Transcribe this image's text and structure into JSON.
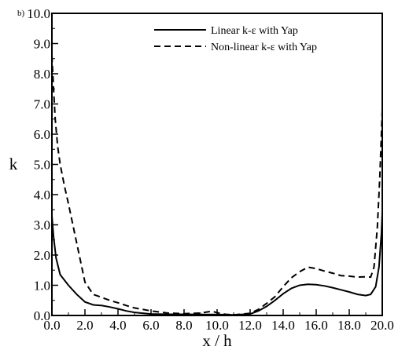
{
  "chart_data": {
    "type": "line",
    "panel_label": "b)",
    "xlabel": "x / h",
    "ylabel": "k",
    "xlim": [
      0,
      20
    ],
    "ylim": [
      0,
      10
    ],
    "x_ticks": [
      "0.0",
      "2.0",
      "4.0",
      "6.0",
      "8.0",
      "10.0",
      "12.0",
      "14.0",
      "16.0",
      "18.0",
      "20.0"
    ],
    "y_ticks": [
      "0.0",
      "1.0",
      "2.0",
      "3.0",
      "4.0",
      "5.0",
      "6.0",
      "7.0",
      "8.0",
      "9.0",
      "10.0"
    ],
    "grid": false,
    "legend_position": "top-right",
    "series": [
      {
        "name": "Linear k-ε  with Yap",
        "style": "solid",
        "color": "#000000",
        "points": [
          [
            0.0,
            3.3
          ],
          [
            0.1,
            2.6
          ],
          [
            0.25,
            1.9
          ],
          [
            0.5,
            1.35
          ],
          [
            1.0,
            1.0
          ],
          [
            1.5,
            0.7
          ],
          [
            2.0,
            0.45
          ],
          [
            2.5,
            0.35
          ],
          [
            3.0,
            0.33
          ],
          [
            3.5,
            0.28
          ],
          [
            4.0,
            0.22
          ],
          [
            4.5,
            0.15
          ],
          [
            5.0,
            0.1
          ],
          [
            6.0,
            0.05
          ],
          [
            7.0,
            0.04
          ],
          [
            8.0,
            0.04
          ],
          [
            9.0,
            0.03
          ],
          [
            10.0,
            0.03
          ],
          [
            11.0,
            0.02
          ],
          [
            12.0,
            0.05
          ],
          [
            12.5,
            0.15
          ],
          [
            13.0,
            0.3
          ],
          [
            13.5,
            0.5
          ],
          [
            14.0,
            0.72
          ],
          [
            14.5,
            0.9
          ],
          [
            15.0,
            1.0
          ],
          [
            15.5,
            1.03
          ],
          [
            16.0,
            1.02
          ],
          [
            16.5,
            0.98
          ],
          [
            17.0,
            0.92
          ],
          [
            17.5,
            0.85
          ],
          [
            18.0,
            0.78
          ],
          [
            18.5,
            0.7
          ],
          [
            19.0,
            0.66
          ],
          [
            19.3,
            0.7
          ],
          [
            19.6,
            0.95
          ],
          [
            19.8,
            1.6
          ],
          [
            19.95,
            2.7
          ],
          [
            20.0,
            3.4
          ]
        ]
      },
      {
        "name": "Non-linear k-ε  with Yap",
        "style": "dashed",
        "color": "#000000",
        "points": [
          [
            0.0,
            8.6
          ],
          [
            0.1,
            7.5
          ],
          [
            0.2,
            6.5
          ],
          [
            0.35,
            5.6
          ],
          [
            0.5,
            5.0
          ],
          [
            0.75,
            4.3
          ],
          [
            1.0,
            3.7
          ],
          [
            1.5,
            2.4
          ],
          [
            2.0,
            1.1
          ],
          [
            2.5,
            0.7
          ],
          [
            3.0,
            0.6
          ],
          [
            3.5,
            0.5
          ],
          [
            4.0,
            0.42
          ],
          [
            4.5,
            0.33
          ],
          [
            5.0,
            0.25
          ],
          [
            6.0,
            0.15
          ],
          [
            7.0,
            0.08
          ],
          [
            8.0,
            0.06
          ],
          [
            9.0,
            0.08
          ],
          [
            9.7,
            0.14
          ],
          [
            10.0,
            0.09
          ],
          [
            10.5,
            0.04
          ],
          [
            11.0,
            0.02
          ],
          [
            12.0,
            0.07
          ],
          [
            12.5,
            0.2
          ],
          [
            13.0,
            0.4
          ],
          [
            13.5,
            0.62
          ],
          [
            14.0,
            0.95
          ],
          [
            14.5,
            1.25
          ],
          [
            15.0,
            1.45
          ],
          [
            15.5,
            1.6
          ],
          [
            16.0,
            1.55
          ],
          [
            16.5,
            1.47
          ],
          [
            17.0,
            1.4
          ],
          [
            17.5,
            1.32
          ],
          [
            18.0,
            1.3
          ],
          [
            18.5,
            1.27
          ],
          [
            19.0,
            1.28
          ],
          [
            19.3,
            1.27
          ],
          [
            19.5,
            1.6
          ],
          [
            19.7,
            2.9
          ],
          [
            19.85,
            4.6
          ],
          [
            20.0,
            6.8
          ]
        ]
      }
    ]
  }
}
